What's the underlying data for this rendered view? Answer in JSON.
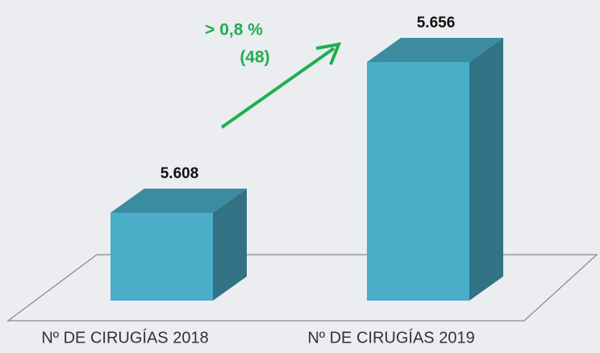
{
  "chart_data": {
    "type": "bar3d",
    "categories": [
      "Nº DE CIRUGÍAS 2018",
      "Nº DE CIRUGÍAS 2019"
    ],
    "values": [
      5608,
      5656
    ],
    "value_labels": [
      "5.608",
      "5.656"
    ],
    "color": "#4aaec9",
    "ylim": [
      5580,
      5660
    ],
    "annotations": [
      "> 0,8 %",
      "(48)"
    ],
    "annotation_color": "#1db050"
  }
}
